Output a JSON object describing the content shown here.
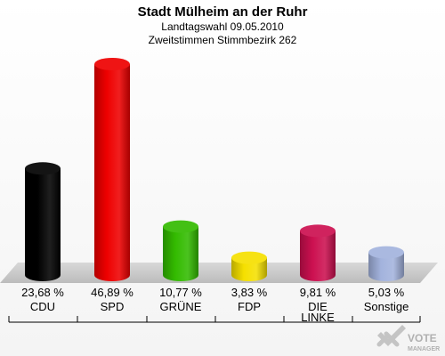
{
  "chart_data": {
    "type": "bar",
    "title": "Stadt Mülheim an der Ruhr",
    "subtitle_1": "Landtagswahl 09.05.2010",
    "subtitle_2": "Zweitstimmen Stimmbezirk 262",
    "categories": [
      "CDU",
      "SPD",
      "GRÜNE",
      "FDP",
      "DIE LINKE",
      "Sonstige"
    ],
    "category_lines": [
      [
        "CDU"
      ],
      [
        "SPD"
      ],
      [
        "GRÜNE"
      ],
      [
        "FDP"
      ],
      [
        "DIE",
        "LINKE"
      ],
      [
        "Sonstige"
      ]
    ],
    "values": [
      23.68,
      46.89,
      10.77,
      3.83,
      9.81,
      5.03
    ],
    "value_labels": [
      "23,68 %",
      "46,89 %",
      "10,77 %",
      "3,83 %",
      "9,81 %",
      "5,03 %"
    ],
    "colors": [
      "#000000",
      "#ee0000",
      "#33bb00",
      "#f5e000",
      "#cc1050",
      "#a3b3dd"
    ],
    "ylim": [
      0,
      50
    ],
    "grid": false,
    "legend": "none"
  },
  "logo": {
    "line1": "VOTE",
    "line2": "MANAGER"
  }
}
